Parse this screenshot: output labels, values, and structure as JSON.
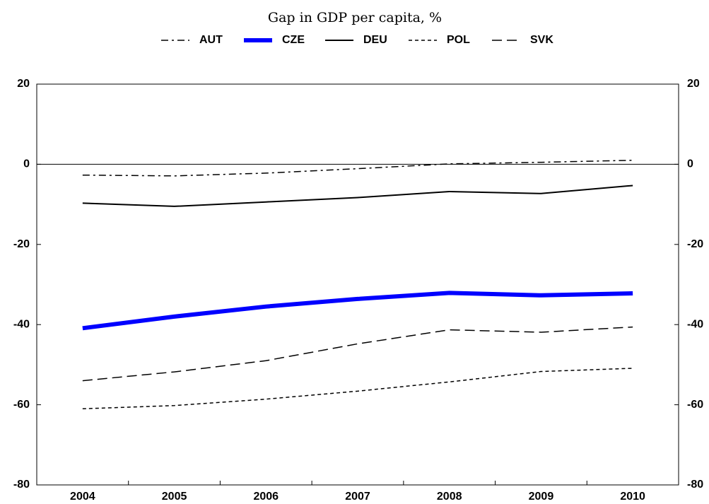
{
  "chart_data": {
    "type": "line",
    "title": "Gap in GDP per capita, %",
    "categories": [
      "2004",
      "2005",
      "2006",
      "2007",
      "2008",
      "2009",
      "2010"
    ],
    "series": [
      {
        "name": "AUT",
        "color": "#000000",
        "width": 1.5,
        "dash": "10 5 3 5",
        "values": [
          -2.7,
          -2.9,
          -2.2,
          -1.1,
          0.1,
          0.5,
          1.0
        ]
      },
      {
        "name": "CZE",
        "color": "#0000ff",
        "width": 6,
        "dash": "none",
        "values": [
          -40.9,
          -38.0,
          -35.5,
          -33.6,
          -32.1,
          -32.7,
          -32.2
        ]
      },
      {
        "name": "DEU",
        "color": "#000000",
        "width": 2,
        "dash": "none",
        "values": [
          -9.7,
          -10.5,
          -9.4,
          -8.3,
          -6.8,
          -7.3,
          -5.3
        ]
      },
      {
        "name": "POL",
        "color": "#000000",
        "width": 1.5,
        "dash": "5 4",
        "values": [
          -61.0,
          -60.2,
          -58.6,
          -56.6,
          -54.3,
          -51.7,
          -50.9
        ]
      },
      {
        "name": "SVK",
        "color": "#000000",
        "width": 1.5,
        "dash": "14 7",
        "values": [
          -54.0,
          -51.8,
          -49.0,
          -44.8,
          -41.3,
          -41.9,
          -40.6
        ]
      }
    ],
    "ylim": [
      -80,
      20
    ],
    "yticks": [
      -80,
      -60,
      -40,
      -20,
      0,
      20
    ],
    "y2lim": [
      -80,
      20
    ],
    "y2ticks": [
      -80,
      -60,
      -40,
      -20,
      0,
      20
    ]
  }
}
